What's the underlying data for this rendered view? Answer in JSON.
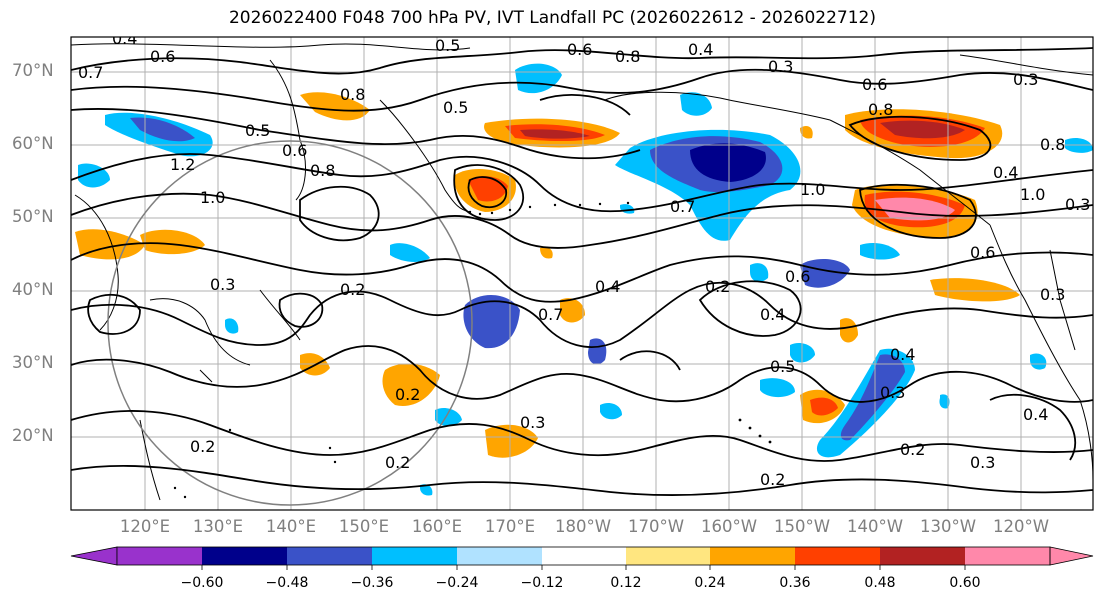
{
  "title": "2026022400 F048 700 hPa PV, IVT Landfall PC (2026022612 - 2026022712)",
  "lat_labels": [
    "70°N",
    "60°N",
    "50°N",
    "40°N",
    "30°N",
    "20°N"
  ],
  "lon_labels": [
    "120°E",
    "130°E",
    "140°E",
    "150°E",
    "160°E",
    "170°E",
    "180°W",
    "170°W",
    "160°W",
    "150°W",
    "140°W",
    "130°W",
    "120°W"
  ],
  "colorbar": {
    "ticks": [
      "−0.60",
      "−0.48",
      "−0.36",
      "−0.24",
      "−0.12",
      "0.12",
      "0.24",
      "0.36",
      "0.48",
      "0.60"
    ],
    "colors": [
      "#9932cc",
      "#00008b",
      "#3a52c8",
      "#00bfff",
      "#b0e2ff",
      "#ffffff",
      "#ffe680",
      "#ffa500",
      "#ff4000",
      "#b22222",
      "#ff88aa"
    ]
  },
  "contour_labels": [
    "0.4",
    "0.5",
    "0.6",
    "0.7",
    "0.8",
    "1.0",
    "1.2",
    "0.3",
    "0.2",
    "0.8",
    "0.5",
    "0.6",
    "1.0",
    "0.7",
    "0.4",
    "0.3",
    "0.2",
    "0.5",
    "0.6",
    "0.8",
    "0.3",
    "0.2",
    "0.7",
    "0.6",
    "0.4",
    "0.5",
    "0.8",
    "0.4",
    "0.3",
    "0.2",
    "1.0",
    "0.8",
    "0.6",
    "0.4",
    "0.3",
    "0.2",
    "0.3",
    "0.2",
    "0.2",
    "0.3",
    "0.4",
    "0.4",
    "0.6",
    "0.3"
  ]
}
